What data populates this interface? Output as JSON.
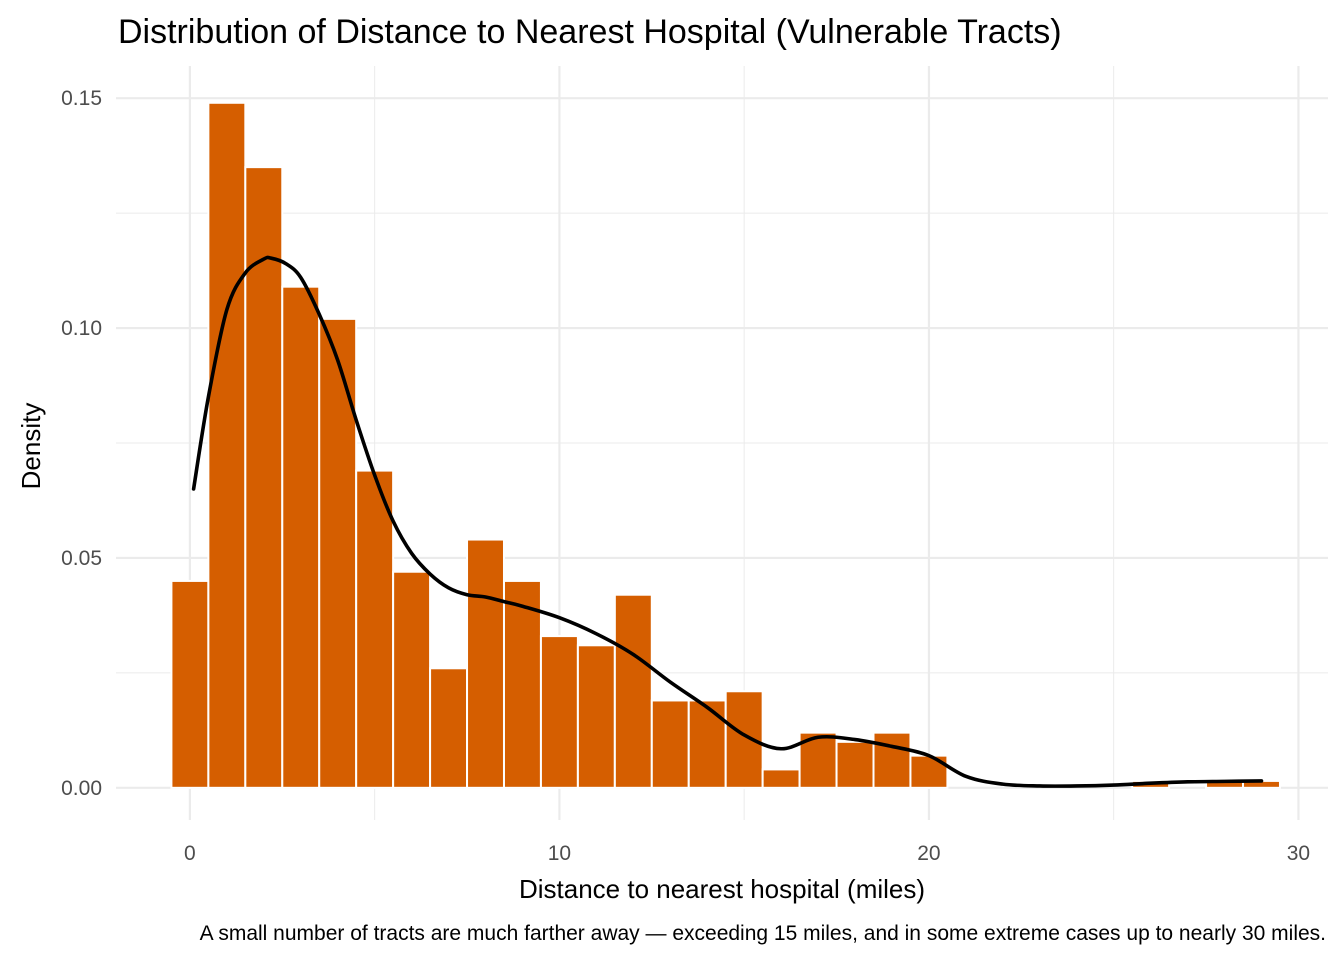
{
  "chart_data": {
    "type": "bar",
    "title": "Distribution of Distance to Nearest Hospital (Vulnerable Tracts)",
    "xlabel": "Distance to nearest hospital (miles)",
    "ylabel": "Density",
    "caption": "A small number of tracts are much farther away — exceeding 15 miles, and in some extreme cases up to nearly 30 miles.",
    "xlim": [
      -2,
      30.8
    ],
    "ylim": [
      -0.007,
      0.157
    ],
    "x_ticks": [
      0,
      10,
      20,
      30
    ],
    "x_tick_labels": [
      "0",
      "10",
      "20",
      "30"
    ],
    "y_ticks": [
      0.0,
      0.05,
      0.1,
      0.15
    ],
    "y_tick_labels": [
      "0.00",
      "0.05",
      "0.10",
      "0.15"
    ],
    "bin_width": 1.0,
    "bins": [
      {
        "center": 0.0,
        "density": 0.045
      },
      {
        "center": 1.0,
        "density": 0.149
      },
      {
        "center": 2.0,
        "density": 0.135
      },
      {
        "center": 3.0,
        "density": 0.109
      },
      {
        "center": 4.0,
        "density": 0.102
      },
      {
        "center": 5.0,
        "density": 0.069
      },
      {
        "center": 6.0,
        "density": 0.047
      },
      {
        "center": 7.0,
        "density": 0.026
      },
      {
        "center": 8.0,
        "density": 0.054
      },
      {
        "center": 9.0,
        "density": 0.045
      },
      {
        "center": 10.0,
        "density": 0.033
      },
      {
        "center": 11.0,
        "density": 0.031
      },
      {
        "center": 12.0,
        "density": 0.042
      },
      {
        "center": 13.0,
        "density": 0.019
      },
      {
        "center": 14.0,
        "density": 0.019
      },
      {
        "center": 15.0,
        "density": 0.021
      },
      {
        "center": 16.0,
        "density": 0.004
      },
      {
        "center": 17.0,
        "density": 0.012
      },
      {
        "center": 18.0,
        "density": 0.01
      },
      {
        "center": 19.0,
        "density": 0.012
      },
      {
        "center": 20.0,
        "density": 0.007
      },
      {
        "center": 21.0,
        "density": 0.0
      },
      {
        "center": 22.0,
        "density": 0.0
      },
      {
        "center": 23.0,
        "density": 0.0
      },
      {
        "center": 24.0,
        "density": 0.0
      },
      {
        "center": 25.0,
        "density": 0.0
      },
      {
        "center": 26.0,
        "density": 0.0015
      },
      {
        "center": 27.0,
        "density": 0.0
      },
      {
        "center": 28.0,
        "density": 0.0015
      },
      {
        "center": 29.0,
        "density": 0.0015
      }
    ],
    "density_curve": {
      "x": [
        0.1,
        0.5,
        1.0,
        1.5,
        2.0,
        2.2,
        2.6,
        3.0,
        3.5,
        4.0,
        4.5,
        5.0,
        5.5,
        6.0,
        6.5,
        7.0,
        7.5,
        8.0,
        8.5,
        9.0,
        10.0,
        11.0,
        12.0,
        13.0,
        14.0,
        15.0,
        16.0,
        17.0,
        18.0,
        19.0,
        20.0,
        21.0,
        22.0,
        23.0,
        24.0,
        25.0,
        26.0,
        27.0,
        28.0,
        29.0
      ],
      "y": [
        0.065,
        0.085,
        0.104,
        0.112,
        0.115,
        0.1152,
        0.114,
        0.111,
        0.103,
        0.093,
        0.08,
        0.068,
        0.058,
        0.051,
        0.0465,
        0.0435,
        0.042,
        0.0415,
        0.0405,
        0.0395,
        0.037,
        0.0335,
        0.029,
        0.023,
        0.0175,
        0.0115,
        0.0085,
        0.011,
        0.0105,
        0.009,
        0.007,
        0.0025,
        0.0008,
        0.0004,
        0.0004,
        0.0006,
        0.001,
        0.0013,
        0.0014,
        0.0015
      ]
    },
    "bar_color": "#D55E00",
    "bar_outline": "#ffffff",
    "curve_color": "#000000",
    "grid": true,
    "legend": "none"
  }
}
